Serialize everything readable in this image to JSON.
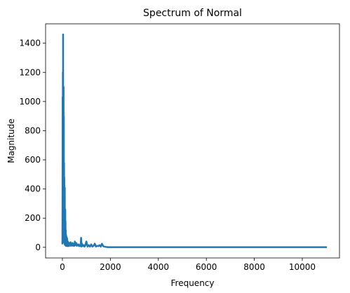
{
  "chart_data": {
    "type": "line",
    "title": "Spectrum of Normal",
    "xlabel": "Frequency",
    "ylabel": "Magnitude",
    "xlim": [
      -700,
      11550
    ],
    "ylim": [
      -73,
      1533
    ],
    "xticks": [
      0,
      2000,
      4000,
      6000,
      8000,
      10000
    ],
    "yticks": [
      0,
      200,
      400,
      600,
      800,
      1000,
      1200,
      1400
    ],
    "grid": false,
    "legend": "none",
    "series": [
      {
        "color": "#1f77b4",
        "x": [
          0,
          5,
          10,
          15,
          20,
          25,
          30,
          35,
          40,
          45,
          50,
          55,
          60,
          65,
          70,
          75,
          80,
          85,
          90,
          95,
          100,
          105,
          110,
          115,
          120,
          125,
          130,
          135,
          140,
          145,
          150,
          155,
          160,
          165,
          170,
          175,
          180,
          185,
          190,
          195,
          200,
          205,
          210,
          215,
          220,
          225,
          230,
          240,
          250,
          260,
          270,
          280,
          290,
          300,
          320,
          340,
          360,
          380,
          400,
          420,
          440,
          460,
          480,
          500,
          520,
          540,
          560,
          580,
          600,
          620,
          640,
          660,
          680,
          700,
          720,
          740,
          760,
          780,
          800,
          820,
          850,
          880,
          900,
          920,
          950,
          1000,
          1050,
          1100,
          1150,
          1200,
          1250,
          1300,
          1350,
          1400,
          1450,
          1500,
          1550,
          1600,
          1650,
          1700,
          1750,
          1800,
          1850,
          1900,
          2000,
          3000,
          4000,
          5000,
          6000,
          7000,
          8000,
          9000,
          10000,
          11025
        ],
        "values": [
          20,
          300,
          1030,
          150,
          1200,
          60,
          1460,
          80,
          1100,
          200,
          1100,
          40,
          900,
          120,
          580,
          30,
          480,
          150,
          350,
          20,
          410,
          60,
          250,
          15,
          260,
          40,
          180,
          20,
          120,
          10,
          90,
          25,
          80,
          15,
          60,
          8,
          70,
          20,
          50,
          10,
          60,
          15,
          40,
          10,
          30,
          8,
          40,
          20,
          30,
          10,
          25,
          8,
          30,
          15,
          20,
          35,
          10,
          20,
          15,
          30,
          10,
          12,
          25,
          10,
          40,
          15,
          20,
          30,
          10,
          20,
          15,
          12,
          20,
          8,
          10,
          15,
          8,
          65,
          5,
          25,
          10,
          8,
          15,
          5,
          10,
          40,
          5,
          15,
          5,
          20,
          5,
          10,
          25,
          5,
          10,
          8,
          15,
          5,
          25,
          8,
          5,
          3,
          2,
          1,
          1,
          1,
          1,
          1,
          1,
          1,
          1,
          1,
          1,
          1
        ]
      }
    ]
  }
}
